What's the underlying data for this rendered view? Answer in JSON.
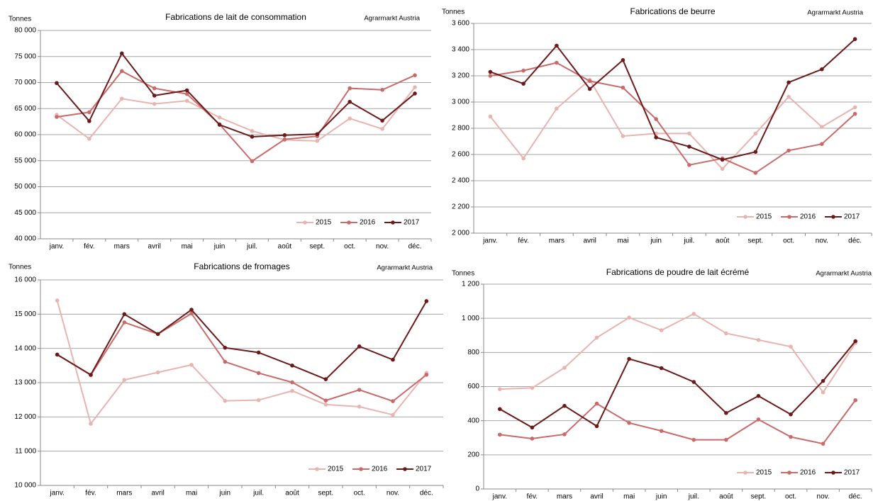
{
  "chart_data": [
    {
      "type": "line",
      "title": "Fabrications de lait de consommation",
      "y_label": "Tonnes",
      "source": "Agrarmarkt Austria",
      "categories": [
        "janv.",
        "fév.",
        "mars",
        "avril",
        "mai",
        "juin",
        "juil.",
        "août",
        "sept.",
        "oct.",
        "nov.",
        "déc."
      ],
      "series": [
        {
          "name": "2015",
          "color": "#e8b4b0",
          "values": [
            63800,
            59200,
            66900,
            65900,
            66500,
            63300,
            60700,
            59000,
            58800,
            63100,
            61100,
            69100
          ]
        },
        {
          "name": "2016",
          "color": "#c96a6a",
          "values": [
            63400,
            64300,
            72200,
            68900,
            67800,
            62000,
            54900,
            59100,
            59700,
            68900,
            68600,
            71400
          ]
        },
        {
          "name": "2017",
          "color": "#6b1a1a",
          "values": [
            69900,
            62600,
            75600,
            67500,
            68500,
            61900,
            59600,
            59900,
            60100,
            66300,
            62700,
            67900
          ]
        }
      ],
      "ylim": [
        40000,
        80000
      ],
      "yticks": [
        {
          "value": 40000,
          "label": "40 000"
        },
        {
          "value": 45000,
          "label": "45 000"
        },
        {
          "value": 50000,
          "label": "50 000"
        },
        {
          "value": 55000,
          "label": "55 000"
        },
        {
          "value": 60000,
          "label": "60 000"
        },
        {
          "value": 65000,
          "label": "65 000"
        },
        {
          "value": 70000,
          "label": "70 000"
        },
        {
          "value": 75000,
          "label": "75 000"
        },
        {
          "value": 80000,
          "label": "80 000"
        }
      ],
      "grid": true
    },
    {
      "type": "line",
      "title": "Fabrications de beurre",
      "y_label": "Tonnes",
      "source": "Agrarmarkt Austria",
      "categories": [
        "janv.",
        "fév.",
        "mars",
        "avril",
        "mai",
        "juin",
        "juil.",
        "août",
        "sept.",
        "oct.",
        "nov.",
        "déc."
      ],
      "series": [
        {
          "name": "2015",
          "color": "#e8b4b0",
          "values": [
            2890,
            2570,
            2950,
            3170,
            2740,
            2760,
            2760,
            2490,
            2760,
            3040,
            2810,
            2960
          ]
        },
        {
          "name": "2016",
          "color": "#c96a6a",
          "values": [
            3200,
            3240,
            3300,
            3160,
            3110,
            2870,
            2520,
            2570,
            2460,
            2630,
            2680,
            2910
          ]
        },
        {
          "name": "2017",
          "color": "#6b1a1a",
          "values": [
            3230,
            3140,
            3430,
            3100,
            3320,
            2730,
            2660,
            2560,
            2620,
            3150,
            3250,
            3480
          ]
        }
      ],
      "ylim": [
        2000,
        3600
      ],
      "yticks": [
        {
          "value": 2000,
          "label": "2 000"
        },
        {
          "value": 2200,
          "label": "2 200"
        },
        {
          "value": 2400,
          "label": "2 400"
        },
        {
          "value": 2600,
          "label": "2 600"
        },
        {
          "value": 2800,
          "label": "2 800"
        },
        {
          "value": 3000,
          "label": "3 000"
        },
        {
          "value": 3200,
          "label": "3 200"
        },
        {
          "value": 3400,
          "label": "3 400"
        },
        {
          "value": 3600,
          "label": "3 600"
        }
      ],
      "grid": true
    },
    {
      "type": "line",
      "title": "Fabrications de fromages",
      "y_label": "Tonnes",
      "source": "Agrarmarkt Austria",
      "categories": [
        "janv.",
        "fév.",
        "mars",
        "avril",
        "mai",
        "juin",
        "juil.",
        "août",
        "sept.",
        "oct.",
        "nov.",
        "déc."
      ],
      "series": [
        {
          "name": "2015",
          "color": "#e8b4b0",
          "values": [
            15400,
            11800,
            13080,
            13300,
            13520,
            12470,
            12490,
            12760,
            12360,
            12300,
            12060,
            13280
          ]
        },
        {
          "name": "2016",
          "color": "#c96a6a",
          "values": [
            13820,
            13220,
            14760,
            14420,
            15020,
            13610,
            13280,
            13010,
            12480,
            12790,
            12460,
            13230
          ]
        },
        {
          "name": "2017",
          "color": "#6b1a1a",
          "values": [
            13820,
            13230,
            15000,
            14420,
            15130,
            14020,
            13880,
            13500,
            13100,
            14060,
            13670,
            15380
          ]
        }
      ],
      "ylim": [
        10000,
        16000
      ],
      "yticks": [
        {
          "value": 10000,
          "label": "10 000"
        },
        {
          "value": 11000,
          "label": "11 000"
        },
        {
          "value": 12000,
          "label": "12 000"
        },
        {
          "value": 13000,
          "label": "13 000"
        },
        {
          "value": 14000,
          "label": "14 000"
        },
        {
          "value": 15000,
          "label": "15 000"
        },
        {
          "value": 16000,
          "label": "16 000"
        }
      ],
      "grid": true
    },
    {
      "type": "line",
      "title": "Fabrications de poudre de lait écrémé",
      "y_label": "Tonnes",
      "source": "Agrarmarkt Austria",
      "categories": [
        "janv.",
        "fév.",
        "mars",
        "avril",
        "mai",
        "juin",
        "juil.",
        "août",
        "sept.",
        "oct.",
        "nov.",
        "déc."
      ],
      "series": [
        {
          "name": "2015",
          "color": "#e8b4b0",
          "values": [
            585,
            592,
            710,
            887,
            1004,
            930,
            1026,
            912,
            873,
            834,
            566,
            855
          ]
        },
        {
          "name": "2016",
          "color": "#c96a6a",
          "values": [
            318,
            295,
            320,
            500,
            387,
            340,
            288,
            288,
            407,
            305,
            265,
            520
          ]
        },
        {
          "name": "2017",
          "color": "#6b1a1a",
          "values": [
            468,
            360,
            487,
            368,
            762,
            708,
            627,
            445,
            545,
            437,
            633,
            866
          ]
        }
      ],
      "ylim": [
        0,
        1200
      ],
      "yticks": [
        0,
        200,
        400,
        600,
        800,
        {
          "value": 1000,
          "label": "1 000"
        },
        {
          "value": 1200,
          "label": "1 200"
        }
      ],
      "grid": true
    }
  ]
}
